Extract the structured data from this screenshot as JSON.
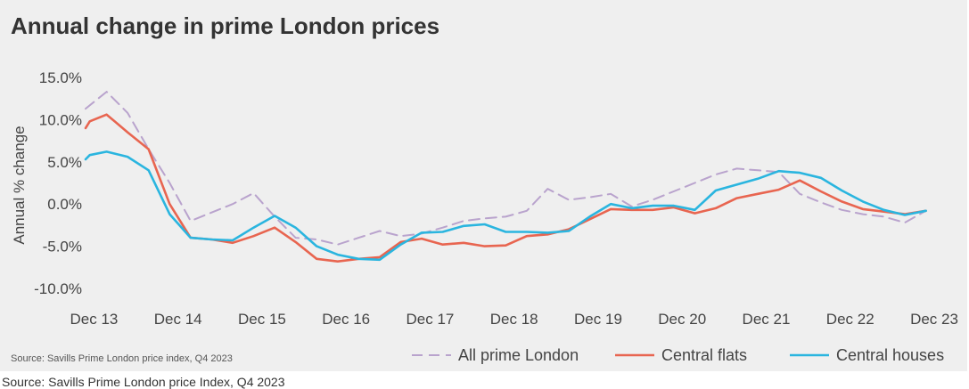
{
  "title": "Annual change in prime London prices",
  "source_inner": "Source: Savills Prime London price index, Q4 2023",
  "source_outer": "Source: Savills Prime London price Index, Q4 2023",
  "chart_data": {
    "type": "line",
    "title": "Annual change in prime London prices",
    "xlabel": "",
    "ylabel": "Annual % change",
    "ylim": [
      -10,
      15
    ],
    "yticks": [
      15,
      10,
      5,
      0,
      -5,
      -10
    ],
    "ytick_labels": [
      "15.0%",
      "10.0%",
      "5.0%",
      "0.0%",
      "-5.0%",
      "-10.0%"
    ],
    "xlim": [
      2013.75,
      2023.85
    ],
    "xticks": [
      2013.85,
      2014.85,
      2015.85,
      2016.85,
      2017.85,
      2018.85,
      2019.85,
      2020.85,
      2021.85,
      2022.85,
      2023.85
    ],
    "xtick_labels": [
      "Dec 13",
      "Dec 14",
      "Dec 15",
      "Dec 16",
      "Dec 17",
      "Dec 18",
      "Dec 19",
      "Dec 20",
      "Dec 21",
      "Dec 22",
      "Dec 23"
    ],
    "grid": false,
    "legend_position": "bottom-right",
    "series": [
      {
        "name": "All prime London",
        "color": "#b9a3cd",
        "style": "dashed",
        "x": [
          2013.75,
          2014.0,
          2014.25,
          2014.5,
          2014.75,
          2015.0,
          2015.25,
          2015.5,
          2015.75,
          2016.0,
          2016.25,
          2016.5,
          2016.75,
          2017.0,
          2017.25,
          2017.5,
          2017.75,
          2018.0,
          2018.25,
          2018.5,
          2018.75,
          2019.0,
          2019.25,
          2019.5,
          2019.75,
          2020.0,
          2020.25,
          2020.5,
          2020.75,
          2021.0,
          2021.25,
          2021.5,
          2021.75,
          2022.0,
          2022.25,
          2022.5,
          2022.75,
          2023.0,
          2023.25,
          2023.5,
          2023.75
        ],
        "values": [
          11.3,
          13.3,
          10.8,
          6.5,
          2.5,
          -2.0,
          -1.0,
          0.0,
          1.3,
          -1.5,
          -4.0,
          -4.2,
          -4.8,
          -4.0,
          -3.2,
          -3.8,
          -3.5,
          -2.8,
          -2.0,
          -1.7,
          -1.5,
          -0.8,
          1.8,
          0.5,
          0.8,
          1.2,
          -0.3,
          0.5,
          1.5,
          2.5,
          3.5,
          4.2,
          4.0,
          3.8,
          1.2,
          0.2,
          -0.7,
          -1.2,
          -1.5,
          -2.2,
          -0.8
        ]
      },
      {
        "name": "Central flats",
        "color": "#e86550",
        "style": "solid",
        "x": [
          2013.75,
          2013.8,
          2014.0,
          2014.25,
          2014.5,
          2014.75,
          2015.0,
          2015.25,
          2015.5,
          2015.75,
          2016.0,
          2016.25,
          2016.5,
          2016.75,
          2017.0,
          2017.25,
          2017.5,
          2017.75,
          2018.0,
          2018.25,
          2018.5,
          2018.75,
          2019.0,
          2019.25,
          2019.5,
          2019.75,
          2020.0,
          2020.25,
          2020.5,
          2020.75,
          2021.0,
          2021.25,
          2021.5,
          2021.75,
          2022.0,
          2022.25,
          2022.5,
          2022.75,
          2023.0,
          2023.25,
          2023.5,
          2023.75
        ],
        "values": [
          9.0,
          9.8,
          10.6,
          8.5,
          6.5,
          0.0,
          -4.0,
          -4.2,
          -4.6,
          -3.8,
          -2.8,
          -4.5,
          -6.5,
          -6.8,
          -6.5,
          -6.3,
          -4.5,
          -4.1,
          -4.8,
          -4.6,
          -5.0,
          -4.9,
          -3.8,
          -3.6,
          -3.0,
          -1.8,
          -0.6,
          -0.7,
          -0.7,
          -0.4,
          -1.1,
          -0.5,
          0.7,
          1.2,
          1.7,
          2.8,
          1.5,
          0.3,
          -0.6,
          -0.9,
          -1.2,
          -0.8
        ]
      },
      {
        "name": "Central houses",
        "color": "#2ab5df",
        "style": "solid",
        "x": [
          2013.75,
          2013.8,
          2014.0,
          2014.25,
          2014.5,
          2014.75,
          2015.0,
          2015.25,
          2015.5,
          2015.75,
          2016.0,
          2016.25,
          2016.5,
          2016.75,
          2017.0,
          2017.25,
          2017.5,
          2017.75,
          2018.0,
          2018.25,
          2018.5,
          2018.75,
          2019.0,
          2019.25,
          2019.5,
          2019.75,
          2020.0,
          2020.25,
          2020.5,
          2020.75,
          2021.0,
          2021.25,
          2021.5,
          2021.75,
          2022.0,
          2022.25,
          2022.5,
          2022.75,
          2023.0,
          2023.25,
          2023.5,
          2023.75
        ],
        "values": [
          5.3,
          5.8,
          6.2,
          5.6,
          4.0,
          -1.2,
          -4.0,
          -4.2,
          -4.3,
          -2.8,
          -1.4,
          -2.8,
          -5.0,
          -6.0,
          -6.5,
          -6.6,
          -4.8,
          -3.4,
          -3.3,
          -2.6,
          -2.4,
          -3.3,
          -3.3,
          -3.4,
          -3.2,
          -1.5,
          0.0,
          -0.5,
          -0.2,
          -0.2,
          -0.7,
          1.6,
          2.3,
          3.0,
          3.9,
          3.7,
          3.1,
          1.6,
          0.3,
          -0.7,
          -1.3,
          -0.8
        ]
      }
    ]
  }
}
